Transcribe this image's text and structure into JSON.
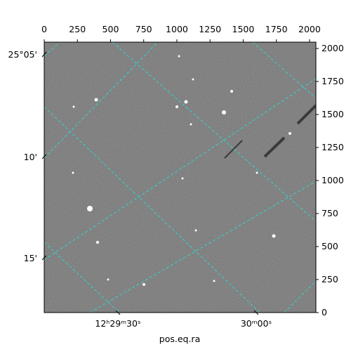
{
  "chart_data": {
    "type": "image",
    "xlabel": "pos.eq.ra",
    "xlim": [
      0,
      2048
    ],
    "xticks": [
      0,
      250,
      500,
      750,
      1000,
      1250,
      1500,
      1750,
      2000
    ],
    "ylim": [
      0,
      2048
    ],
    "yticks": [
      0,
      250,
      500,
      750,
      1000,
      1250,
      1500,
      1750,
      2000
    ],
    "dec_ticks": [
      "25°05'",
      "10'",
      "15'"
    ],
    "ra_ticks": [
      "12ʰ29ᵐ30ˢ",
      "30ᵐ00ˢ"
    ]
  }
}
